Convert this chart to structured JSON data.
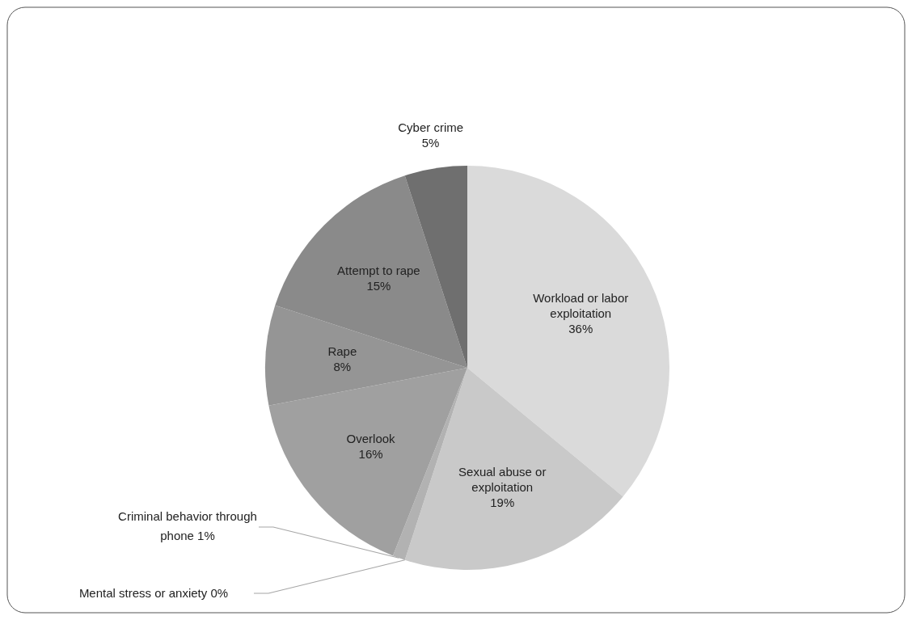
{
  "chart_data": {
    "type": "pie",
    "categories": [
      "Workload or labor exploitation",
      "Sexual abuse or exploitation",
      "Mental stress or anxiety",
      "Criminal behavior through phone",
      "Overlook",
      "Rape",
      "Attempt to rape",
      "Cyber crime"
    ],
    "values": [
      36,
      19,
      0,
      1,
      16,
      8,
      15,
      5
    ],
    "value_labels": [
      "36%",
      "19%",
      "0%",
      "1%",
      "16%",
      "8%",
      "15%",
      "5%"
    ],
    "colors": [
      "#dadada",
      "#c9c9c9",
      "#b8b8b8",
      "#b2b2b2",
      "#a0a0a0",
      "#959595",
      "#8a8a8a",
      "#6f6f6f"
    ]
  }
}
